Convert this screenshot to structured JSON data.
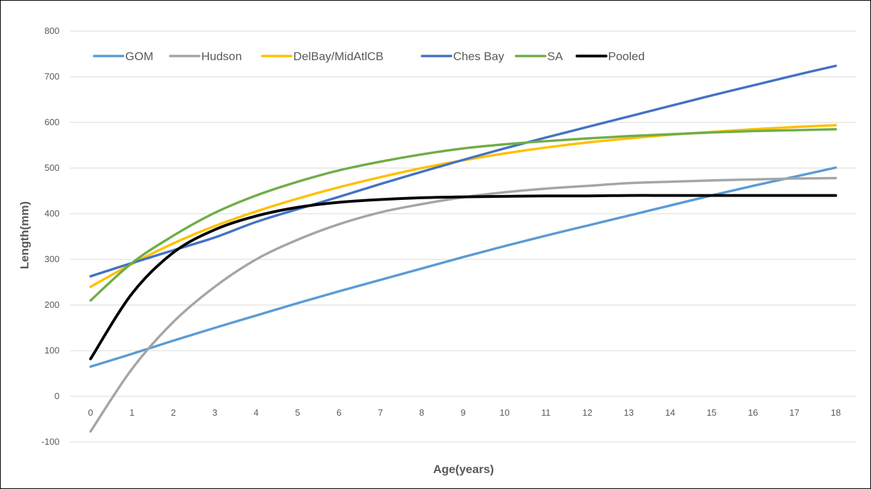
{
  "chart_data": {
    "type": "line",
    "title": "",
    "xlabel": "Age(years)",
    "ylabel": "Length(mm)",
    "x": [
      0,
      1,
      2,
      3,
      4,
      5,
      6,
      7,
      8,
      9,
      10,
      11,
      12,
      13,
      14,
      15,
      16,
      17,
      18
    ],
    "xlim": [
      0,
      18
    ],
    "ylim": [
      -100,
      800
    ],
    "yticks": [
      -100,
      0,
      100,
      200,
      300,
      400,
      500,
      600,
      700,
      800
    ],
    "grid": "horizontal",
    "legend": "top-left",
    "series": [
      {
        "name": "GOM",
        "color": "#5b9bd5",
        "values": [
          65,
          93,
          122,
          150,
          177,
          204,
          230,
          255,
          280,
          305,
          329,
          352,
          374,
          396,
          418,
          440,
          461,
          481,
          501
        ]
      },
      {
        "name": "Hudson",
        "color": "#a5a5a5",
        "values": [
          -77,
          60,
          163,
          240,
          300,
          343,
          377,
          403,
          421,
          436,
          447,
          455,
          461,
          467,
          470,
          473,
          475,
          477,
          478
        ]
      },
      {
        "name": "DelBay/MidAtlCB",
        "color": "#ffc000",
        "values": [
          240,
          290,
          335,
          373,
          405,
          433,
          458,
          480,
          500,
          517,
          532,
          545,
          556,
          565,
          573,
          579,
          585,
          590,
          594
        ]
      },
      {
        "name": "Ches Bay",
        "color": "#4472c4",
        "values": [
          263,
          292,
          320,
          348,
          382,
          410,
          437,
          465,
          492,
          518,
          543,
          567,
          590,
          613,
          636,
          659,
          681,
          703,
          724
        ]
      },
      {
        "name": "SA",
        "color": "#70ad47",
        "values": [
          210,
          292,
          352,
          402,
          440,
          470,
          495,
          514,
          530,
          543,
          552,
          559,
          565,
          570,
          574,
          578,
          581,
          583,
          585
        ]
      },
      {
        "name": "Pooled",
        "color": "#000000",
        "values": [
          82,
          225,
          315,
          365,
          395,
          414,
          425,
          431,
          435,
          437,
          438,
          439,
          439,
          440,
          440,
          440,
          440,
          440,
          440
        ]
      }
    ]
  }
}
